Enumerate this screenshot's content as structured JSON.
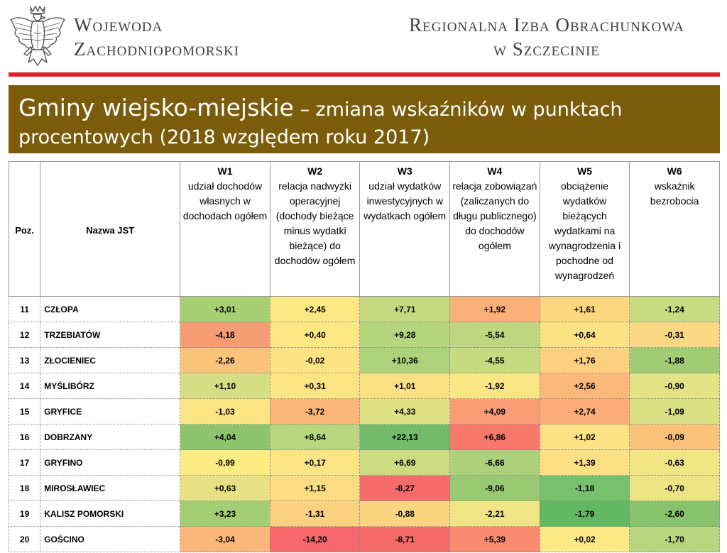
{
  "header": {
    "left_line1": "Wojewoda",
    "left_line2": "Zachodniopomorski",
    "right_line1": "Regionalna Izba Obrachunkowa",
    "right_line2": "w Szczecinie",
    "eagle_icon": "white-eagle-emblem-icon",
    "accent_color": "#e31e24"
  },
  "title": {
    "main": "Gminy wiejsko-miejskie",
    "sub_line1": " – zmiana wskaźników w punktach",
    "sub_line2": "procentowych (2018 względem roku 2017)",
    "band_color": "#7a5c0a"
  },
  "table": {
    "col_pos": "Poz.",
    "col_name": "Nazwa JST",
    "columns": [
      {
        "code": "W1",
        "desc": "udział dochodów własnych w dochodach ogółem"
      },
      {
        "code": "W2",
        "desc": "relacja nadwyżki operacyjnej (dochody bieżące minus wydatki bieżące) do dochodów ogółem"
      },
      {
        "code": "W3",
        "desc": "udział wydatków inwestycyjnych w wydatkach ogółem"
      },
      {
        "code": "W4",
        "desc": "relacja zobowiązań (zaliczanych do długu publicznego) do dochodów ogółem"
      },
      {
        "code": "W5",
        "desc": "obciążenie wydatków bieżących wydatkami na wynagrodzenia i pochodne od wynagrodzeń"
      },
      {
        "code": "W6",
        "desc": "wskaźnik bezrobocia"
      }
    ],
    "rows": [
      {
        "pos": "11",
        "name": "CZŁOPA",
        "values": [
          "+3,01",
          "+2,45",
          "+7,71",
          "+1,92",
          "+1,61",
          "-1,24"
        ],
        "colors": [
          "#a9cf73",
          "#fce885",
          "#c6d980",
          "#fbb079",
          "#fdd680",
          "#c9db80"
        ]
      },
      {
        "pos": "12",
        "name": "TRZEBIATÓW",
        "values": [
          "-4,18",
          "+0,40",
          "+9,28",
          "-5,54",
          "+0,64",
          "-0,31"
        ],
        "colors": [
          "#f79d76",
          "#fde884",
          "#b6d67d",
          "#bcd77f",
          "#fde284",
          "#fbd883"
        ]
      },
      {
        "pos": "13",
        "name": "ZŁOCIENIEC",
        "values": [
          "-2,26",
          "-0,02",
          "+10,36",
          "-4,55",
          "+1,76",
          "-1,88"
        ],
        "colors": [
          "#fbc27c",
          "#fde383",
          "#aed27b",
          "#c6da80",
          "#fdd080",
          "#a0cc74"
        ]
      },
      {
        "pos": "14",
        "name": "MYŚLIBÓRZ",
        "values": [
          "+1,10",
          "+0,31",
          "+1,01",
          "-1,92",
          "+2,56",
          "-0,90"
        ],
        "colors": [
          "#d4de82",
          "#fde584",
          "#fbe083",
          "#fbe685",
          "#fcb87b",
          "#e3e284"
        ]
      },
      {
        "pos": "15",
        "name": "GRYFICE",
        "values": [
          "-1,03",
          "-3,72",
          "+4,33",
          "+4,09",
          "+2,74",
          "-1,09"
        ],
        "colors": [
          "#fde584",
          "#fbb77a",
          "#e0e283",
          "#fa9c76",
          "#fbac78",
          "#d8e083"
        ]
      },
      {
        "pos": "16",
        "name": "DOBRZANY",
        "values": [
          "+4,04",
          "+8,64",
          "+22,13",
          "+6,86",
          "+1,02",
          "-0,09"
        ],
        "colors": [
          "#8ec46e",
          "#b8d67d",
          "#73bb6a",
          "#f8786c",
          "#fde185",
          "#fbc27c"
        ]
      },
      {
        "pos": "17",
        "name": "GRYFINO",
        "values": [
          "-0,99",
          "+0,17",
          "+6,69",
          "-6,66",
          "+1,39",
          "-0,63"
        ],
        "colors": [
          "#fdeb84",
          "#fde484",
          "#ccdb81",
          "#acd07c",
          "#fde083",
          "#f2e584"
        ]
      },
      {
        "pos": "18",
        "name": "MIROSŁAWIEC",
        "values": [
          "+0,63",
          "+1,15",
          "-8,27",
          "-9,06",
          "-1,18",
          "-0,70"
        ],
        "colors": [
          "#e6e283",
          "#fbdc83",
          "#f56b6a",
          "#99c872",
          "#77c06d",
          "#ece383"
        ]
      },
      {
        "pos": "19",
        "name": "KALISZ POMORSKI",
        "values": [
          "+3,23",
          "-1,31",
          "-0,88",
          "-2,21",
          "-1,79",
          "-2,60"
        ],
        "colors": [
          "#a3cd75",
          "#fcd180",
          "#fcd580",
          "#f0e484",
          "#63b862",
          "#87c26d"
        ]
      },
      {
        "pos": "20",
        "name": "GOŚCINO",
        "values": [
          "-3,04",
          "-14,20",
          "-8,71",
          "+5,39",
          "+0,02",
          "-1,70"
        ],
        "colors": [
          "#fbb679",
          "#f5676a",
          "#f66a6a",
          "#fa8a70",
          "#fde984",
          "#b7d67f"
        ]
      }
    ]
  }
}
